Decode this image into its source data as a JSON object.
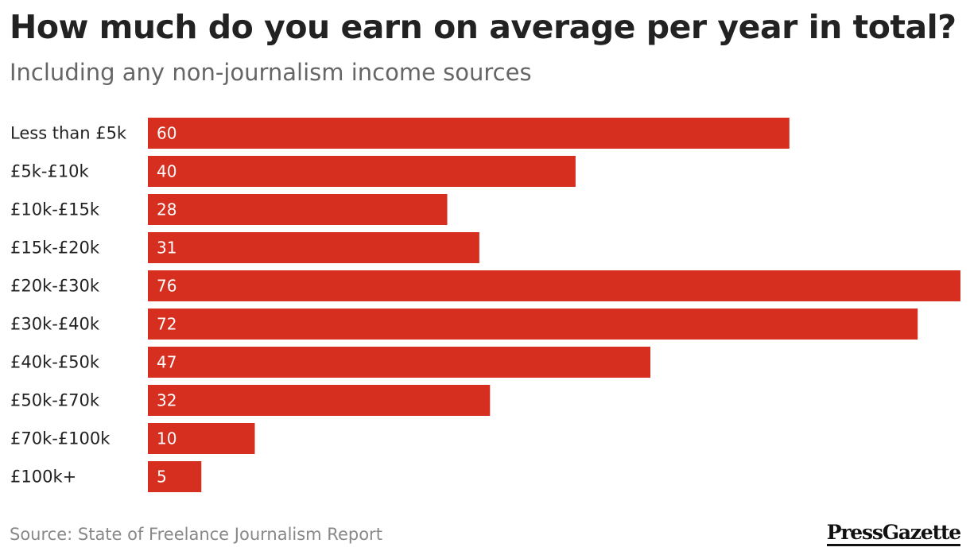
{
  "header": {
    "title": "How much do you earn on average per year in total?",
    "subtitle": "Including any non-journalism income sources"
  },
  "footer": {
    "source": "Source: State of Freelance Journalism Report",
    "brand": "PressGazette"
  },
  "colors": {
    "bar": "#d62e1f",
    "value_text": "#ffffff"
  },
  "chart_data": {
    "type": "bar",
    "orientation": "horizontal",
    "title": "How much do you earn on average per year in total?",
    "subtitle": "Including any non-journalism income sources",
    "categories": [
      "Less than £5k",
      "£5k-£10k",
      "£10k-£15k",
      "£15k-£20k",
      "£20k-£30k",
      "£30k-£40k",
      "£40k-£50k",
      "£50k-£70k",
      "£70k-£100k",
      "£100k+"
    ],
    "values": [
      60,
      40,
      28,
      31,
      76,
      72,
      47,
      32,
      10,
      5
    ],
    "xlabel": "",
    "ylabel": "",
    "xlim": [
      0,
      76
    ],
    "grid": false,
    "legend": "none",
    "data_labels": "inside-start"
  }
}
